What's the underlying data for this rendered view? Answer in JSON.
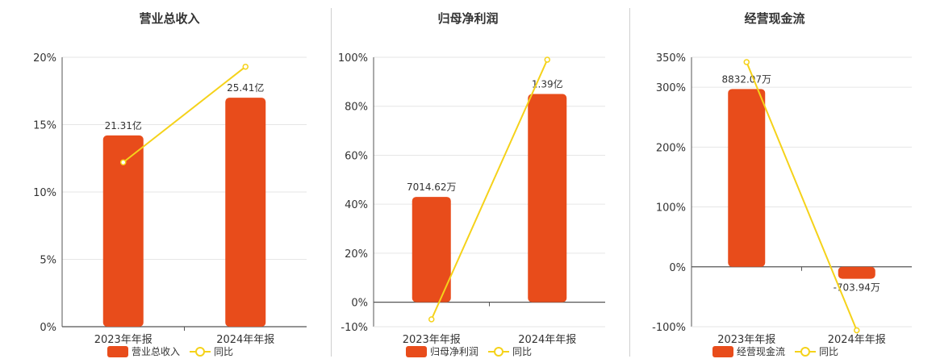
{
  "colors": {
    "bar": "#e84c1b",
    "line": "#f5d21a",
    "grid": "#e6e6e6",
    "axis": "#555555"
  },
  "chart_data": [
    {
      "type": "bar",
      "title": "营业总收入",
      "categories": [
        "2023年年报",
        "2024年年报"
      ],
      "bar_series": {
        "name": "营业总收入",
        "labels": [
          "21.31亿",
          "25.41亿"
        ]
      },
      "line_series": {
        "name": "同比",
        "values": [
          12.2,
          19.3
        ]
      },
      "bar_heights_on_axis": [
        14.2,
        17.0
      ],
      "yaxis": {
        "min": 0,
        "max": 20,
        "ticks": [
          0,
          5,
          10,
          15,
          20
        ],
        "unit": "%"
      },
      "legend": "bottom"
    },
    {
      "type": "bar",
      "title": "归母净利润",
      "categories": [
        "2023年年报",
        "2024年年报"
      ],
      "bar_series": {
        "name": "归母净利润",
        "labels": [
          "7014.62万",
          "1.39亿"
        ]
      },
      "line_series": {
        "name": "同比",
        "values": [
          -7,
          99
        ]
      },
      "bar_heights_on_axis": [
        43,
        85
      ],
      "yaxis": {
        "min": -10,
        "max": 100,
        "ticks": [
          -10,
          0,
          20,
          40,
          60,
          80,
          100
        ],
        "unit": "%"
      },
      "legend": "bottom"
    },
    {
      "type": "bar",
      "title": "经营现金流",
      "categories": [
        "2023年年报",
        "2024年年报"
      ],
      "bar_series": {
        "name": "经营现金流",
        "labels": [
          "8832.07万",
          "-703.94万"
        ]
      },
      "line_series": {
        "name": "同比",
        "values": [
          342,
          -106
        ]
      },
      "bar_heights_on_axis": [
        297,
        -20
      ],
      "yaxis": {
        "min": -100,
        "max": 350,
        "ticks": [
          -100,
          0,
          100,
          200,
          300,
          350
        ],
        "unit": "%"
      },
      "legend": "bottom"
    }
  ]
}
